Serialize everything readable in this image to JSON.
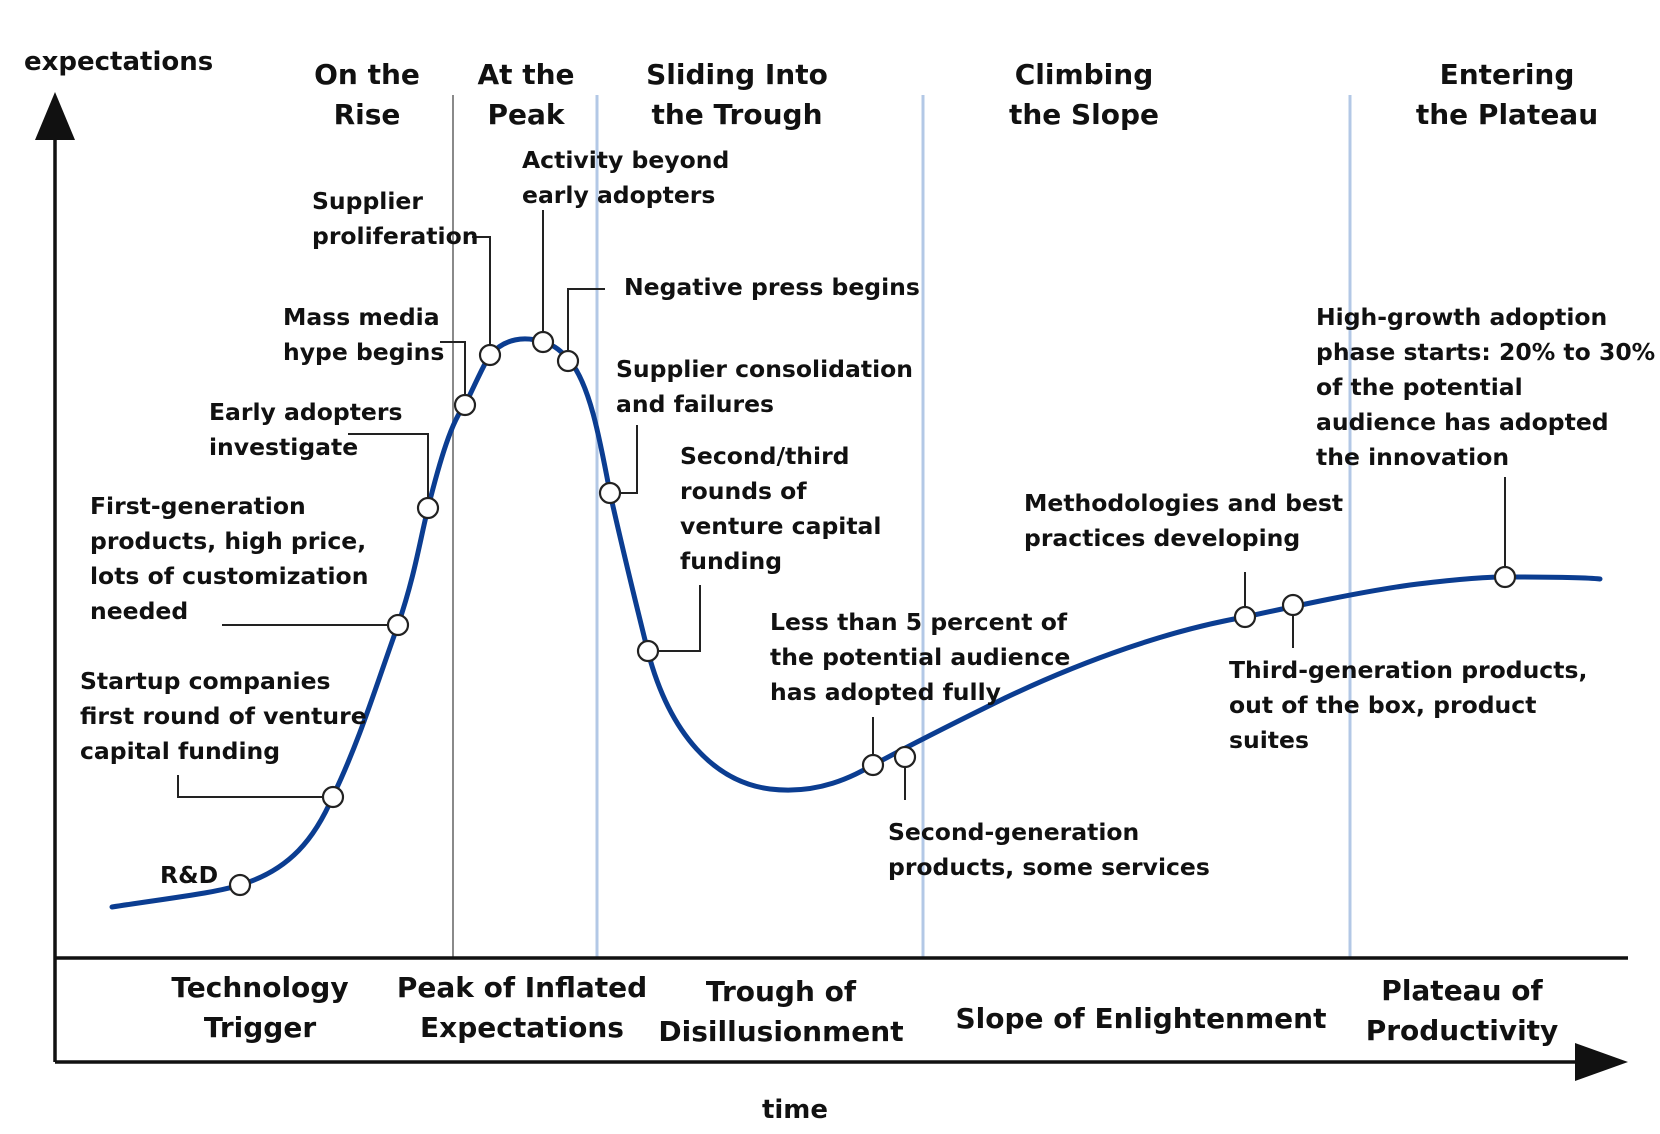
{
  "axes": {
    "y_label": "expectations",
    "x_label": "time"
  },
  "colors": {
    "curve": "#0b3d91",
    "phase_divider_blue": "#b3c8e6",
    "phase_divider_grey": "#8a8a8a",
    "text": "#111111"
  },
  "top_phases": [
    {
      "lines": [
        "On the",
        "Rise"
      ]
    },
    {
      "lines": [
        "At the",
        "Peak"
      ]
    },
    {
      "lines": [
        "Sliding Into",
        "the Trough"
      ]
    },
    {
      "lines": [
        "Climbing",
        "the Slope"
      ]
    },
    {
      "lines": [
        "Entering",
        "the Plateau"
      ]
    }
  ],
  "bottom_phases": [
    {
      "lines": [
        "Technology",
        "Trigger"
      ]
    },
    {
      "lines": [
        "Peak of Inflated",
        "Expectations"
      ]
    },
    {
      "lines": [
        "Trough of",
        "Disillusionment"
      ]
    },
    {
      "lines": [
        "Slope of Enlightenment"
      ]
    },
    {
      "lines": [
        "Plateau of",
        "Productivity"
      ]
    }
  ],
  "milestones": [
    {
      "lines": [
        "R&D"
      ]
    },
    {
      "lines": [
        "Startup companies",
        "first round of venture",
        "capital funding"
      ]
    },
    {
      "lines": [
        "First-generation",
        "products, high price,",
        "lots of customization",
        "needed"
      ]
    },
    {
      "lines": [
        "Early adopters",
        "investigate"
      ]
    },
    {
      "lines": [
        "Mass media",
        "hype begins"
      ]
    },
    {
      "lines": [
        "Supplier",
        "proliferation"
      ]
    },
    {
      "lines": [
        "Activity beyond",
        "early adopters"
      ]
    },
    {
      "lines": [
        "Negative press begins"
      ]
    },
    {
      "lines": [
        "Supplier consolidation",
        "and failures"
      ]
    },
    {
      "lines": [
        "Second/third",
        "rounds of",
        "venture capital",
        "funding"
      ]
    },
    {
      "lines": [
        "Less than 5 percent of",
        "the potential audience",
        "has adopted fully"
      ]
    },
    {
      "lines": [
        "Second-generation",
        "products, some services"
      ]
    },
    {
      "lines": [
        "Methodologies and best",
        "practices developing"
      ]
    },
    {
      "lines": [
        "Third-generation products,",
        "out of the box, product",
        "suites"
      ]
    },
    {
      "lines": [
        "High-growth adoption",
        "phase starts: 20% to 30%",
        "of the potential",
        "audience has adopted",
        "the innovation"
      ]
    }
  ]
}
